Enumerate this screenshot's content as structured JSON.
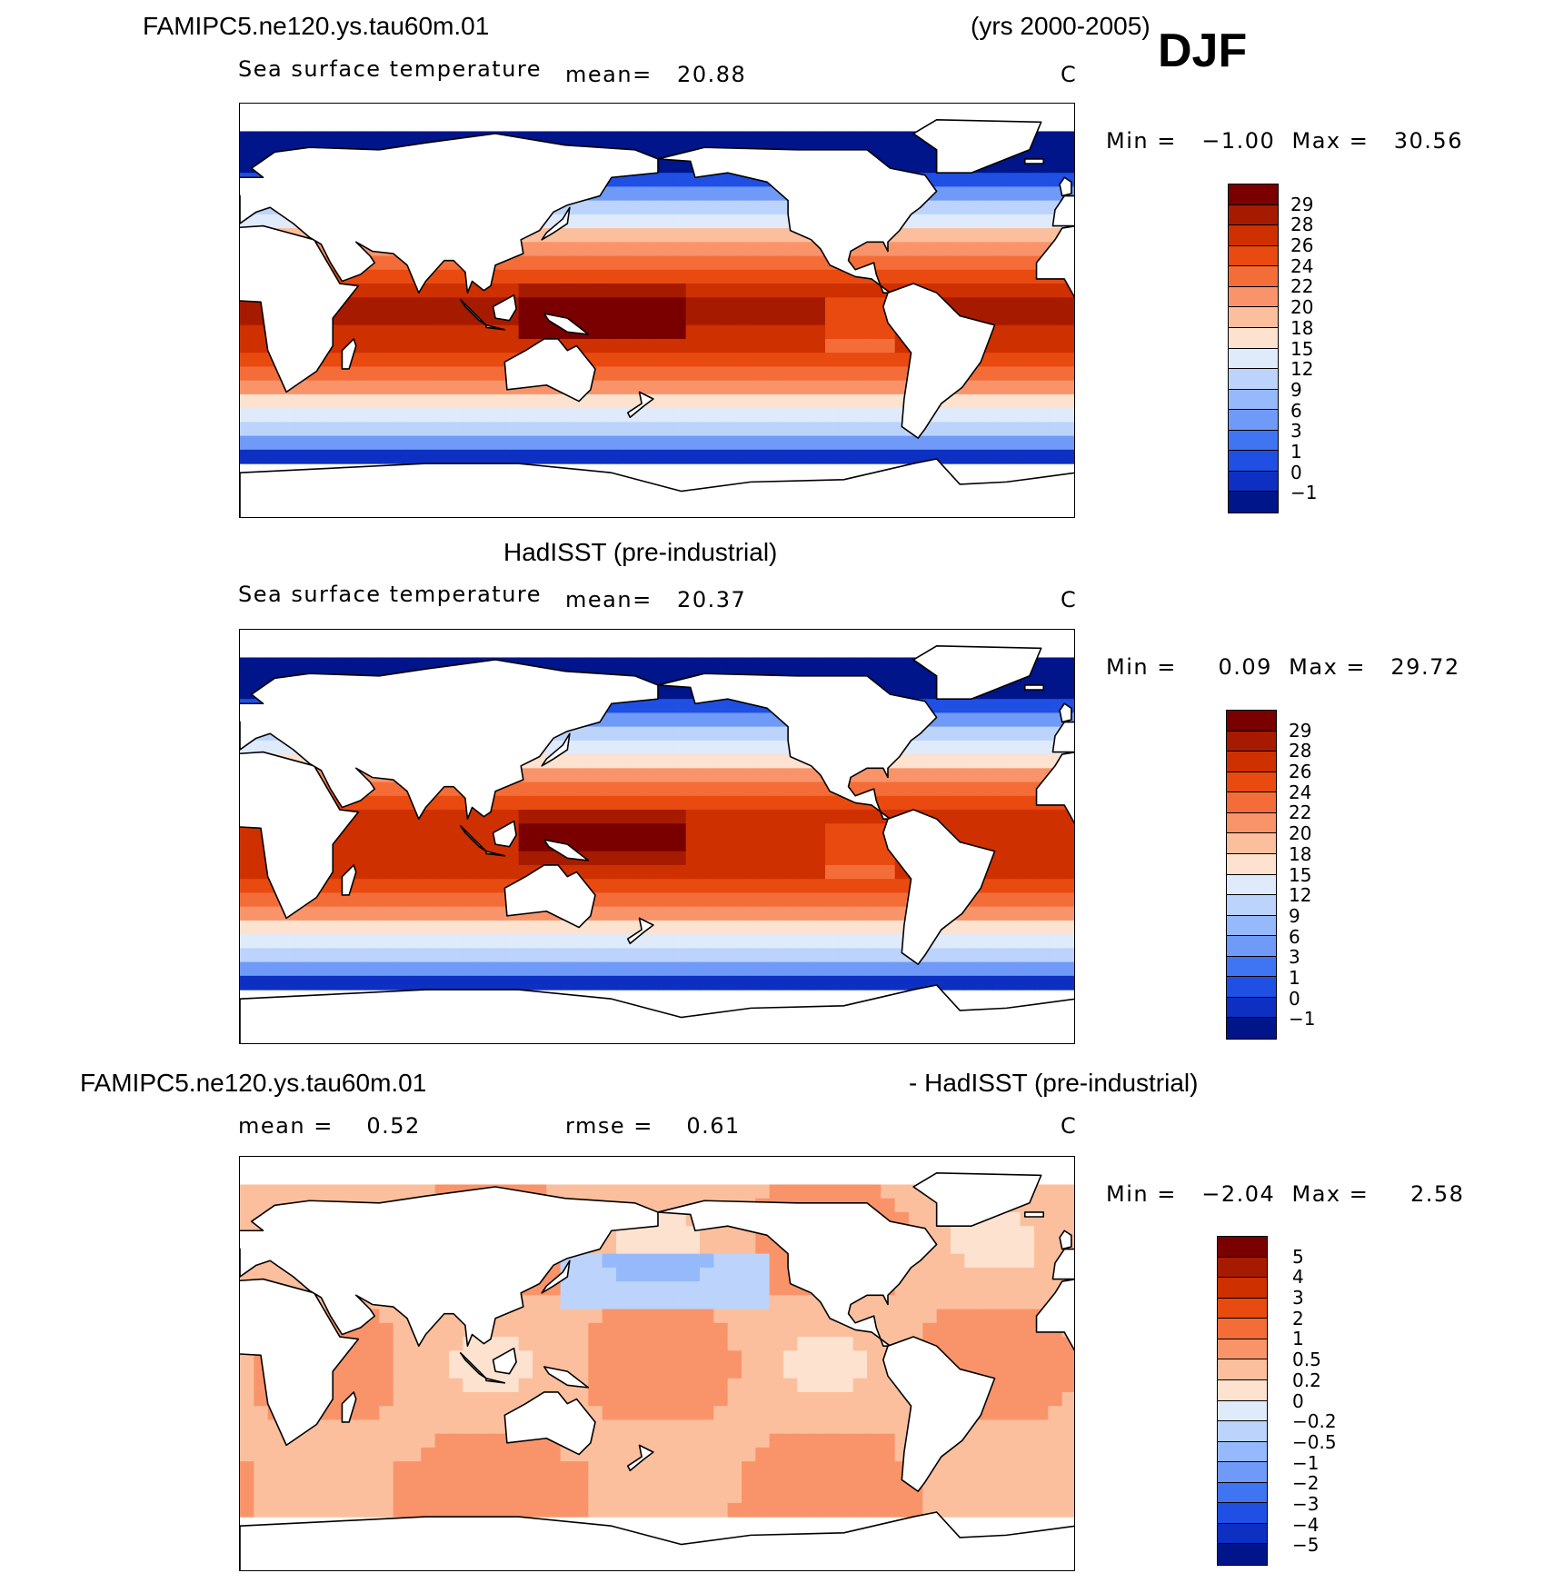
{
  "header": {
    "case_name": "FAMIPC5.ne120.ys.tau60m.01",
    "years": "(yrs 2000-2005)",
    "season": "DJF"
  },
  "panels": [
    {
      "title": "",
      "variable": "Sea surface temperature",
      "stat1": "mean=   20.88",
      "stat2": "",
      "units": "C",
      "minmax": "Min =   −1.00  Max =   30.56",
      "field": "model_sst",
      "levels": [
        "29",
        "28",
        "26",
        "24",
        "22",
        "20",
        "18",
        "15",
        "12",
        "9",
        "6",
        "3",
        "1",
        "0",
        "−1"
      ]
    },
    {
      "title": "HadISST (pre-industrial)",
      "variable": "Sea surface temperature",
      "stat1": "mean=   20.37",
      "stat2": "",
      "units": "C",
      "minmax": "Min =     0.09  Max =   29.72",
      "field": "obs_sst",
      "levels": [
        "29",
        "28",
        "26",
        "24",
        "22",
        "20",
        "18",
        "15",
        "12",
        "9",
        "6",
        "3",
        "1",
        "0",
        "−1"
      ]
    },
    {
      "title_left": "FAMIPC5.ne120.ys.tau60m.01",
      "title_right": "- HadISST (pre-industrial)",
      "stat1": "mean =    0.52",
      "stat2": "rmse =    0.61",
      "units": "C",
      "minmax": "Min =   −2.04  Max =     2.58",
      "field": "difference",
      "levels": [
        "5",
        "4",
        "3",
        "2",
        "1",
        "0.5",
        "0.2",
        "0",
        "−0.2",
        "−0.5",
        "−1",
        "−2",
        "−3",
        "−4",
        "−5"
      ]
    }
  ],
  "colors": {
    "sst_scale": [
      "#7a0000",
      "#a61b00",
      "#cf3000",
      "#e84a10",
      "#f46d38",
      "#f9946a",
      "#fbbf9d",
      "#fde2cf",
      "#dfeafb",
      "#bcd3fb",
      "#95b9fb",
      "#6f9af8",
      "#3f74f3",
      "#1f4fe3",
      "#0d30c2",
      "#00158a"
    ],
    "diff_scale": [
      "#7a0000",
      "#a61b00",
      "#cf3000",
      "#e84a10",
      "#f46d38",
      "#f9946a",
      "#fbbf9d",
      "#fde2cf",
      "#dfeafb",
      "#bcd3fb",
      "#95b9fb",
      "#6f9af8",
      "#3f74f3",
      "#1f4fe3",
      "#0d30c2",
      "#00158a"
    ],
    "land": "#ffffff",
    "coastline": "#000000"
  }
}
